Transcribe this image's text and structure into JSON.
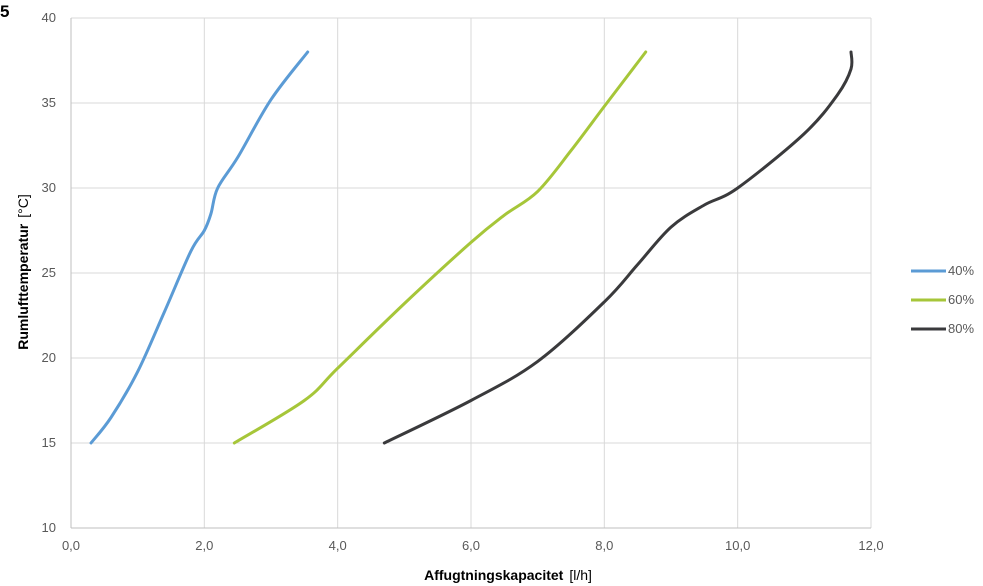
{
  "corner_mark": "5",
  "chart_data": {
    "type": "line",
    "title": "",
    "xlabel": "Affugtningskapacitet",
    "xlabel_unit": "[l/h]",
    "ylabel": "Rumlufttemperatur",
    "ylabel_unit": "[°C]",
    "xlim": [
      0,
      12
    ],
    "ylim": [
      10,
      40
    ],
    "x_ticks": [
      0,
      2,
      4,
      6,
      8,
      10,
      12
    ],
    "x_tick_labels": [
      "0,0",
      "2,0",
      "4,0",
      "6,0",
      "8,0",
      "10,0",
      "12,0"
    ],
    "y_ticks": [
      10,
      15,
      20,
      25,
      30,
      35,
      40
    ],
    "y_tick_labels": [
      "10",
      "15",
      "20",
      "25",
      "30",
      "35",
      "40"
    ],
    "grid": "vertical",
    "legend_position": "right",
    "series": [
      {
        "name": "40%",
        "color": "#5b9bd5",
        "points": [
          [
            0.3,
            15
          ],
          [
            0.6,
            16.5
          ],
          [
            1.0,
            19.2
          ],
          [
            1.4,
            22.7
          ],
          [
            1.8,
            26.3
          ],
          [
            2.0,
            27.5
          ],
          [
            2.1,
            28.5
          ],
          [
            2.2,
            30
          ],
          [
            2.5,
            31.8
          ],
          [
            3.0,
            35.2
          ],
          [
            3.55,
            38
          ]
        ]
      },
      {
        "name": "60%",
        "color": "#a6c639",
        "points": [
          [
            2.45,
            15
          ],
          [
            3.5,
            17.5
          ],
          [
            4.0,
            19.4
          ],
          [
            5.0,
            23.2
          ],
          [
            6.0,
            26.8
          ],
          [
            6.5,
            28.4
          ],
          [
            7.0,
            29.8
          ],
          [
            7.5,
            32.2
          ],
          [
            8.0,
            34.8
          ],
          [
            8.62,
            38
          ]
        ]
      },
      {
        "name": "80%",
        "color": "#3a3a3c",
        "points": [
          [
            4.7,
            15
          ],
          [
            6.0,
            17.5
          ],
          [
            7.0,
            19.8
          ],
          [
            8.0,
            23.3
          ],
          [
            8.5,
            25.5
          ],
          [
            9.0,
            27.7
          ],
          [
            9.5,
            29
          ],
          [
            10.0,
            30
          ],
          [
            11.0,
            33.2
          ],
          [
            11.5,
            35.5
          ],
          [
            11.7,
            37
          ],
          [
            11.7,
            38
          ]
        ]
      }
    ]
  }
}
